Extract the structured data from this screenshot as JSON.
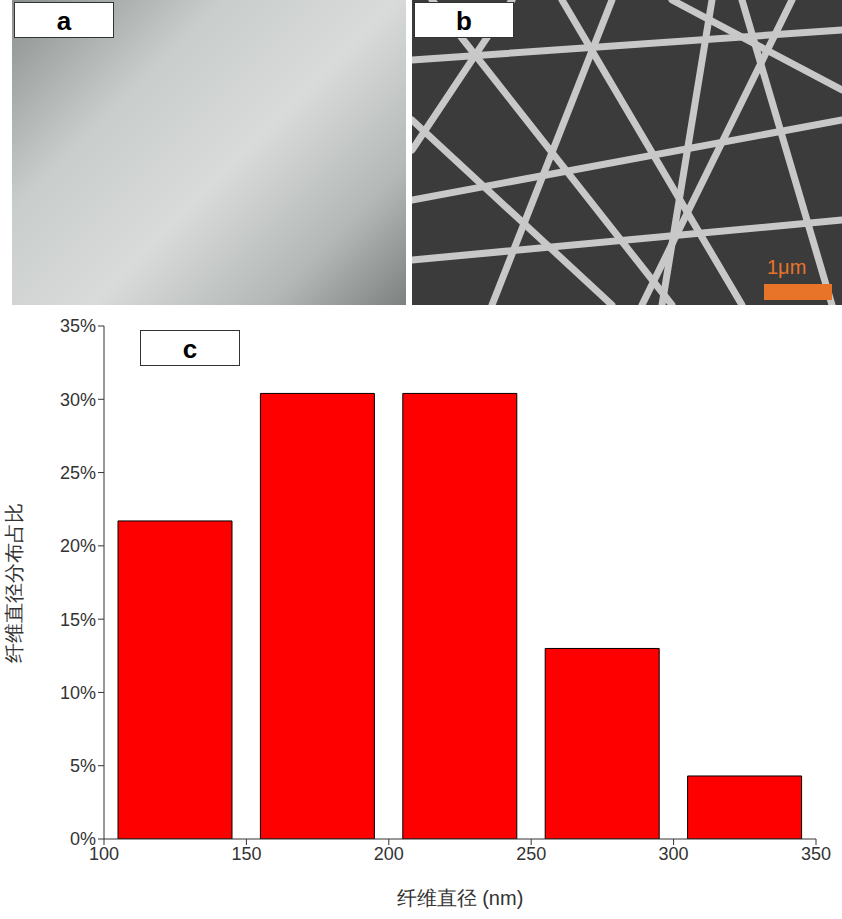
{
  "panels": [
    {
      "label": "a"
    },
    {
      "label": "b",
      "scale_bar": "1μm"
    },
    {
      "label": "c"
    }
  ],
  "chart_data": {
    "type": "histogram",
    "x_label": "纤维直径 (nm)",
    "y_label": "纤维直径分布占比",
    "bins": [
      100,
      150,
      200,
      250,
      300,
      350
    ],
    "values": [
      21.7,
      30.4,
      30.4,
      13.0,
      4.3
    ],
    "color": "#ff0000",
    "xlim": [
      100,
      350
    ],
    "xticks": [
      100,
      150,
      200,
      250,
      300,
      350
    ],
    "ylim": [
      0,
      35
    ],
    "yticks": [
      {
        "value": 0,
        "label": "0%"
      },
      {
        "value": 5,
        "label": "5%"
      },
      {
        "value": 10,
        "label": "10%"
      },
      {
        "value": 15,
        "label": "15%"
      },
      {
        "value": 20,
        "label": "20%"
      },
      {
        "value": 25,
        "label": "25%"
      },
      {
        "value": 30,
        "label": "30%"
      },
      {
        "value": 35,
        "label": "35%"
      }
    ],
    "grid": false
  }
}
